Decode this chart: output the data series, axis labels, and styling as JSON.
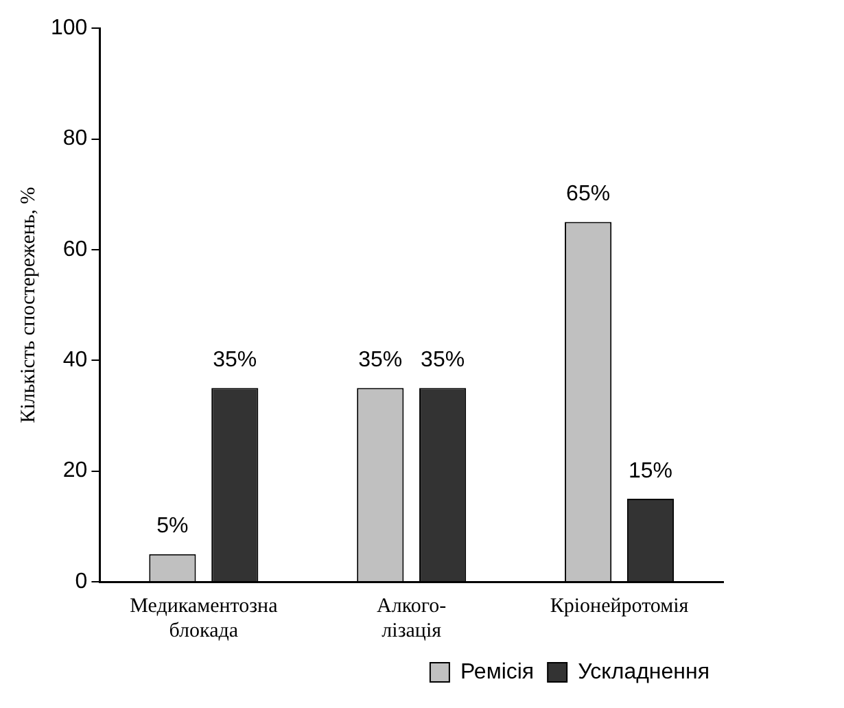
{
  "chart_data": {
    "type": "bar",
    "ylabel": "Кількість спостережень, %",
    "categories": [
      "Медикаментозна\nблокада",
      "Алкого-\nлізація",
      "Кріонейротомія"
    ],
    "series": [
      {
        "name": "Ремісія",
        "color": "#c0c0c0",
        "values": [
          5,
          35,
          65
        ],
        "value_labels": [
          "5%",
          "35%",
          "65%"
        ]
      },
      {
        "name": "Ускладнення",
        "color": "#333333",
        "values": [
          35,
          35,
          15
        ],
        "value_labels": [
          "35%",
          "35%",
          "15%"
        ]
      }
    ],
    "ylim": [
      0,
      100
    ],
    "yticks": [
      0,
      20,
      40,
      60,
      80,
      100
    ],
    "grid": false,
    "legend": "bottom right"
  }
}
